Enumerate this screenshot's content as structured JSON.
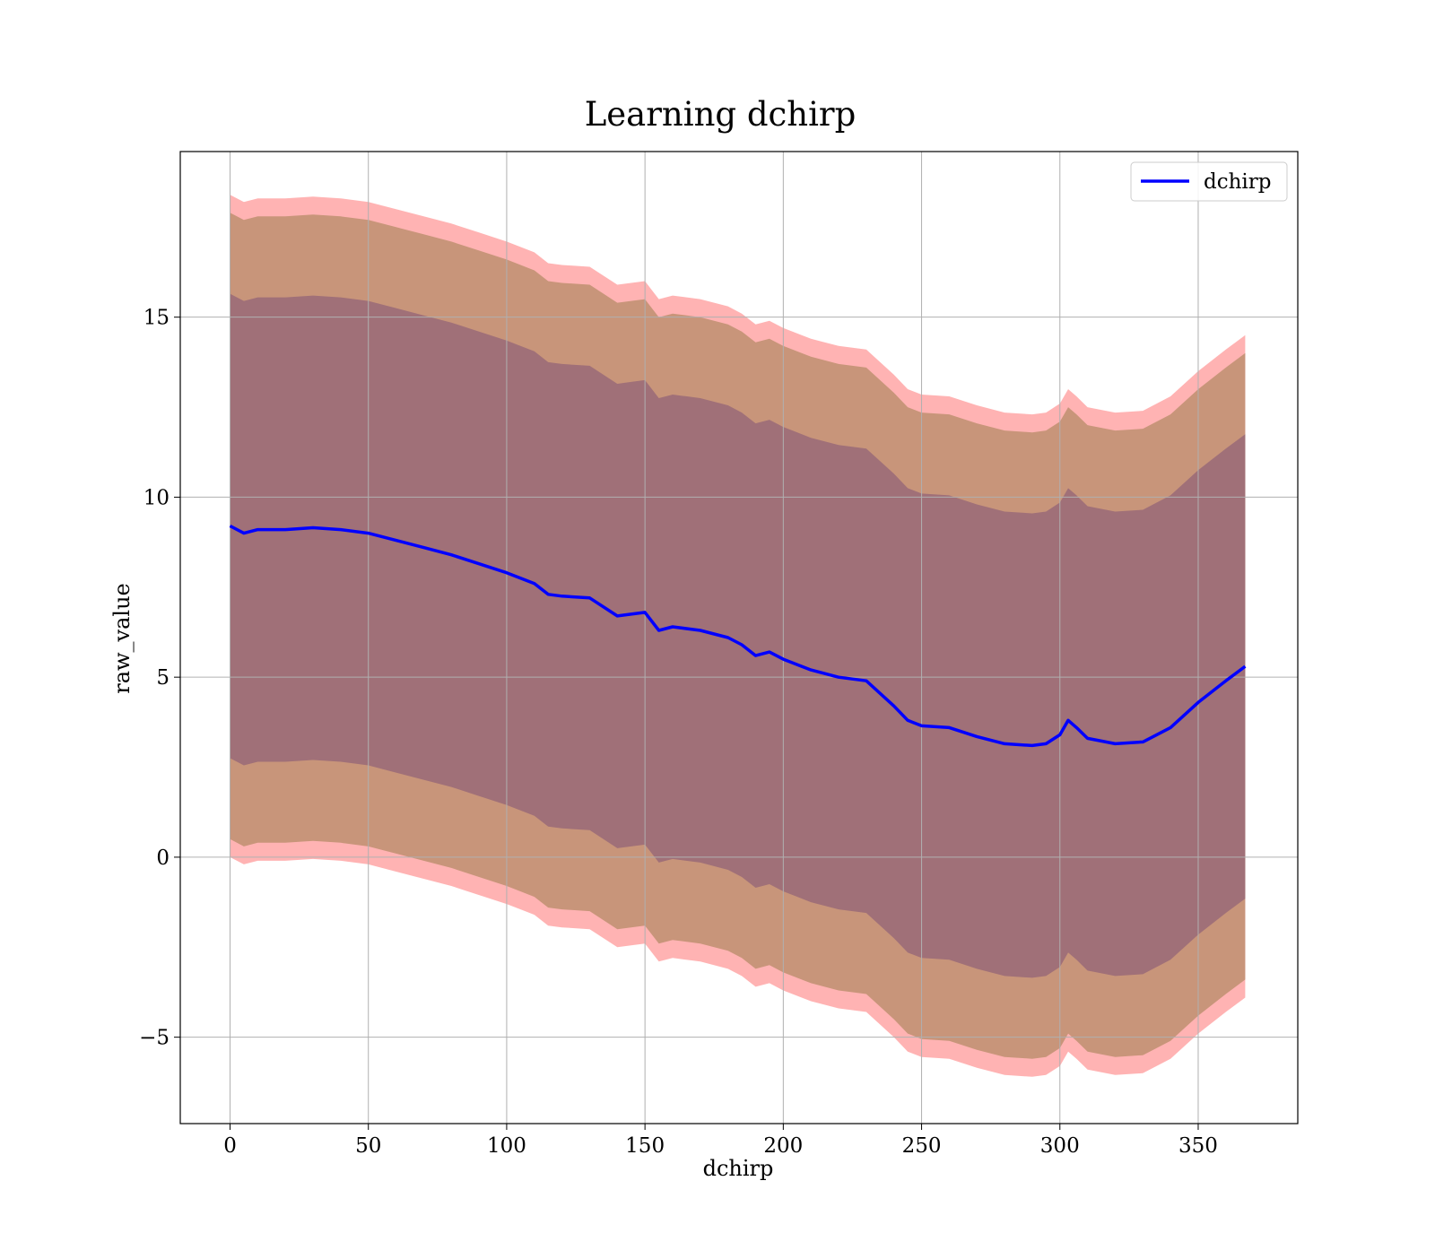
{
  "chart_data": {
    "type": "area",
    "title": "Learning dchirp",
    "xlabel": "dchirp",
    "ylabel": "raw_value",
    "xlim": [
      -18,
      386
    ],
    "ylim": [
      -7.4,
      19.6
    ],
    "xticks": [
      0,
      50,
      100,
      150,
      200,
      250,
      300,
      350
    ],
    "yticks": [
      -5,
      0,
      5,
      10,
      15
    ],
    "ytick_labels": [
      "−5",
      "0",
      "5",
      "10",
      "15"
    ],
    "grid": true,
    "legend": {
      "placement": "top-right",
      "entries": [
        "dchirp"
      ]
    },
    "colors": {
      "line": "#0000ff",
      "band_outer": "#ff9999",
      "band_middle": "#c8957a",
      "band_inner": "#a07078",
      "grid": "#b0b0b0",
      "frame": "#000000"
    },
    "x": [
      0,
      5,
      10,
      20,
      30,
      40,
      50,
      60,
      70,
      80,
      90,
      100,
      110,
      115,
      120,
      130,
      140,
      145,
      150,
      155,
      160,
      170,
      180,
      185,
      190,
      195,
      200,
      210,
      220,
      230,
      240,
      245,
      250,
      260,
      270,
      280,
      290,
      295,
      300,
      303,
      306,
      310,
      320,
      330,
      340,
      350,
      360,
      367
    ],
    "series": [
      {
        "name": "dchirp",
        "values": [
          9.2,
          9.0,
          9.1,
          9.1,
          9.15,
          9.1,
          9.0,
          8.8,
          8.6,
          8.4,
          8.15,
          7.9,
          7.6,
          7.3,
          7.25,
          7.2,
          6.7,
          6.75,
          6.8,
          6.3,
          6.4,
          6.3,
          6.1,
          5.9,
          5.6,
          5.7,
          5.5,
          5.2,
          5.0,
          4.9,
          4.2,
          3.8,
          3.65,
          3.6,
          3.35,
          3.15,
          3.1,
          3.15,
          3.4,
          3.8,
          3.6,
          3.3,
          3.15,
          3.2,
          3.6,
          4.3,
          4.9,
          5.3
        ]
      }
    ],
    "bands": [
      {
        "offset_lower": 9.2,
        "offset_upper": 9.2
      },
      {
        "offset_lower": 8.7,
        "offset_upper": 8.7
      },
      {
        "offset_lower": 6.45,
        "offset_upper": 6.45
      }
    ]
  }
}
